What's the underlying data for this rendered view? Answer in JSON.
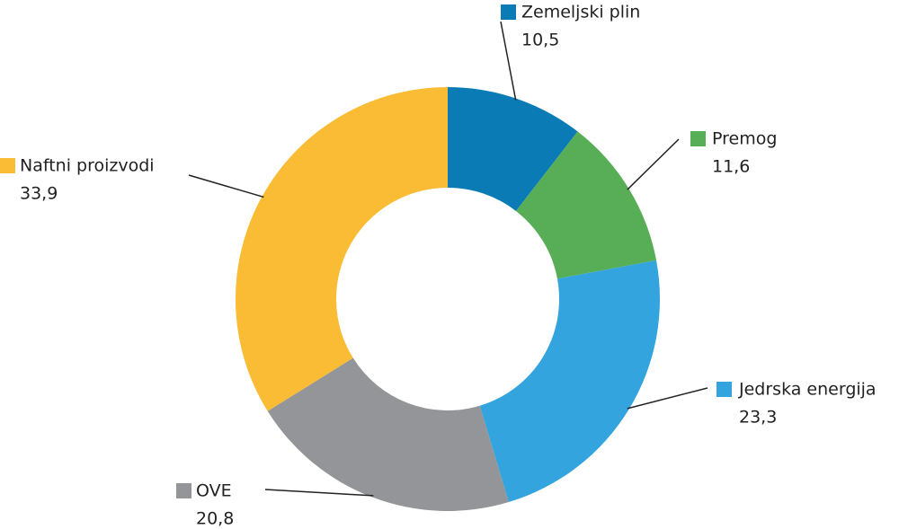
{
  "chart_data": {
    "type": "donut",
    "categories": [
      "Zemeljski plin",
      "Premog",
      "Jedrska energija",
      "OVE",
      "Naftni proizvodi"
    ],
    "values": [
      10.5,
      11.6,
      23.3,
      20.8,
      33.9
    ],
    "value_labels": [
      "10,5",
      "11,6",
      "23,3",
      "20,8",
      "33,9"
    ],
    "colors": [
      "#0a7bb5",
      "#58ad57",
      "#33a4dd",
      "#939598",
      "#fbbc35"
    ]
  }
}
